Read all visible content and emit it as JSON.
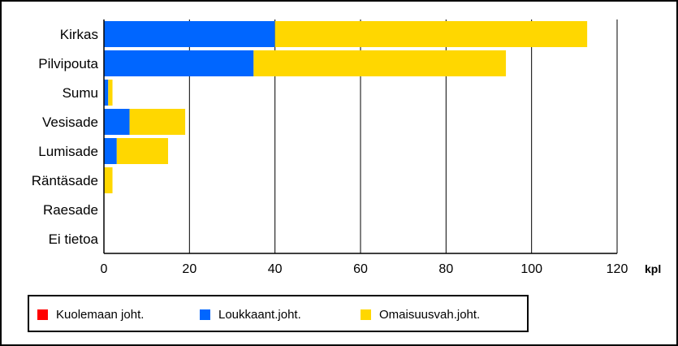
{
  "chart_data": {
    "type": "bar",
    "orientation": "horizontal",
    "stacked": true,
    "categories": [
      "Kirkas",
      "Pilvipouta",
      "Sumu",
      "Vesisade",
      "Lumisade",
      "Räntäsade",
      "Raesade",
      "Ei tietoa"
    ],
    "series": [
      {
        "name": "Kuolemaan joht.",
        "color": "#ff0000",
        "values": [
          0,
          0,
          0,
          0,
          0,
          0,
          0,
          0
        ]
      },
      {
        "name": "Loukkaant.joht.",
        "color": "#0066ff",
        "values": [
          40,
          35,
          1,
          6,
          3,
          0,
          0,
          0
        ]
      },
      {
        "name": "Omaisuusvah.joht.",
        "color": "#ffd700",
        "values": [
          73,
          59,
          1,
          13,
          12,
          2,
          0,
          0
        ]
      }
    ],
    "xlim": [
      0,
      120
    ],
    "xticks": [
      0,
      20,
      40,
      60,
      80,
      100,
      120
    ],
    "xlabel": "kpl",
    "grid": "vertical",
    "legend_position": "bottom"
  }
}
